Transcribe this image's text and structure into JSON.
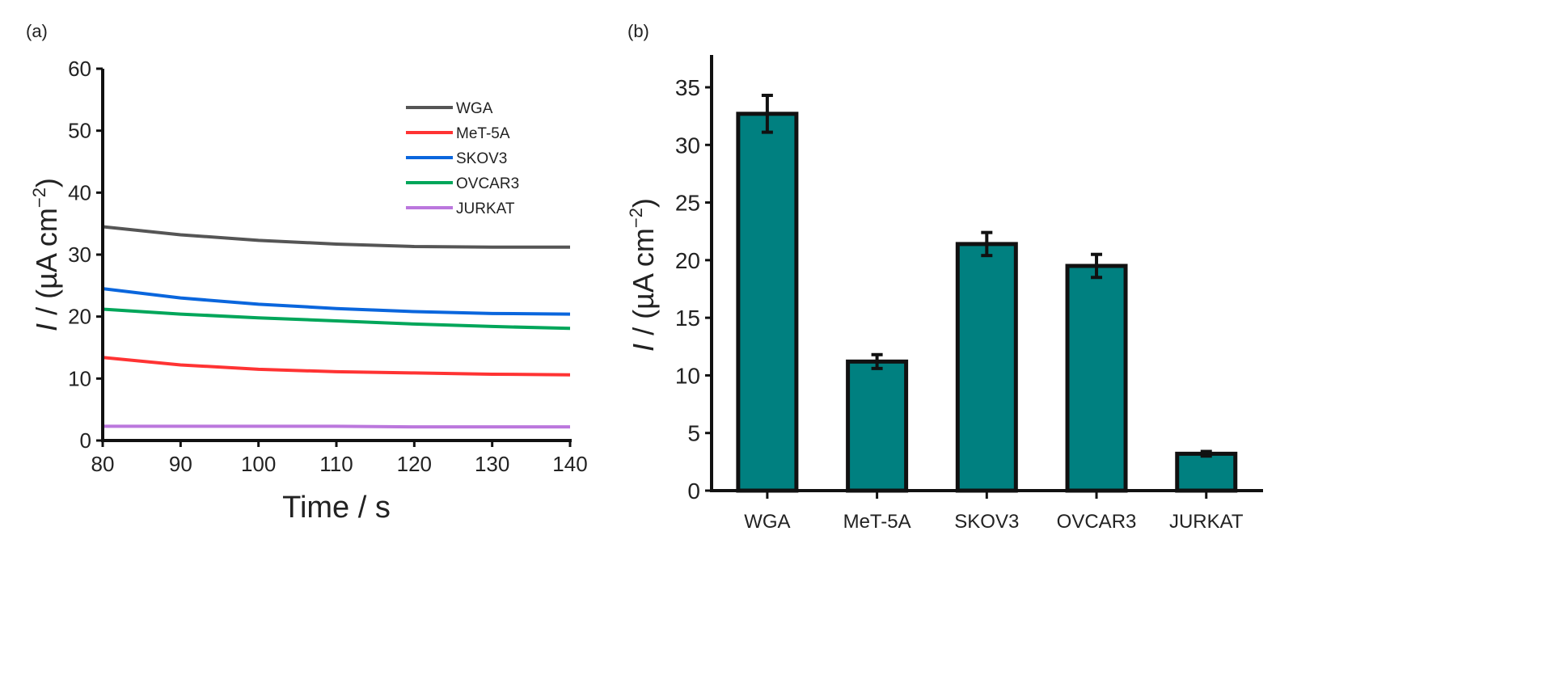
{
  "chart_data": [
    {
      "type": "line",
      "panel_label": "(a)",
      "title": "",
      "xlabel": "Time / s",
      "ylabel_italic": "I",
      "ylabel_rest": " / (µA cm",
      "ylabel_sup": "−2",
      "ylabel_close": ")",
      "xlim": [
        80,
        140
      ],
      "ylim": [
        0,
        60
      ],
      "xticks": [
        80,
        90,
        100,
        110,
        120,
        130,
        140
      ],
      "yticks": [
        0,
        10,
        20,
        30,
        40,
        50,
        60
      ],
      "grid": false,
      "legend_position": "top-right",
      "x": [
        80,
        90,
        100,
        110,
        120,
        130,
        140
      ],
      "series": [
        {
          "name": "WGA",
          "color": "#555555",
          "values": [
            34.5,
            33.2,
            32.3,
            31.7,
            31.3,
            31.2,
            31.2
          ]
        },
        {
          "name": "MeT-5A",
          "color": "#ff3333",
          "values": [
            13.4,
            12.2,
            11.5,
            11.1,
            10.9,
            10.7,
            10.6
          ]
        },
        {
          "name": "SKOV3",
          "color": "#0a66dd",
          "values": [
            24.5,
            23.0,
            22.0,
            21.3,
            20.8,
            20.5,
            20.4
          ]
        },
        {
          "name": "OVCAR3",
          "color": "#00a65a",
          "values": [
            21.2,
            20.4,
            19.8,
            19.3,
            18.8,
            18.4,
            18.1
          ]
        },
        {
          "name": "JURKAT",
          "color": "#bb77dd",
          "values": [
            2.3,
            2.3,
            2.3,
            2.3,
            2.2,
            2.2,
            2.2
          ]
        }
      ]
    },
    {
      "type": "bar",
      "panel_label": "(b)",
      "title": "",
      "xlabel": "",
      "ylabel_italic": "I",
      "ylabel_rest": " / (µA cm",
      "ylabel_sup": "−2",
      "ylabel_close": ")",
      "ylim": [
        0,
        37
      ],
      "yticks": [
        0,
        5,
        10,
        15,
        20,
        25,
        30,
        35
      ],
      "grid": false,
      "bar_color": "#008080",
      "categories": [
        "WGA",
        "MeT-5A",
        "SKOV3",
        "OVCAR3",
        "JURKAT"
      ],
      "values": [
        32.7,
        11.2,
        21.4,
        19.5,
        3.2
      ],
      "errors": [
        1.6,
        0.6,
        1.0,
        1.0,
        0.2
      ]
    }
  ]
}
